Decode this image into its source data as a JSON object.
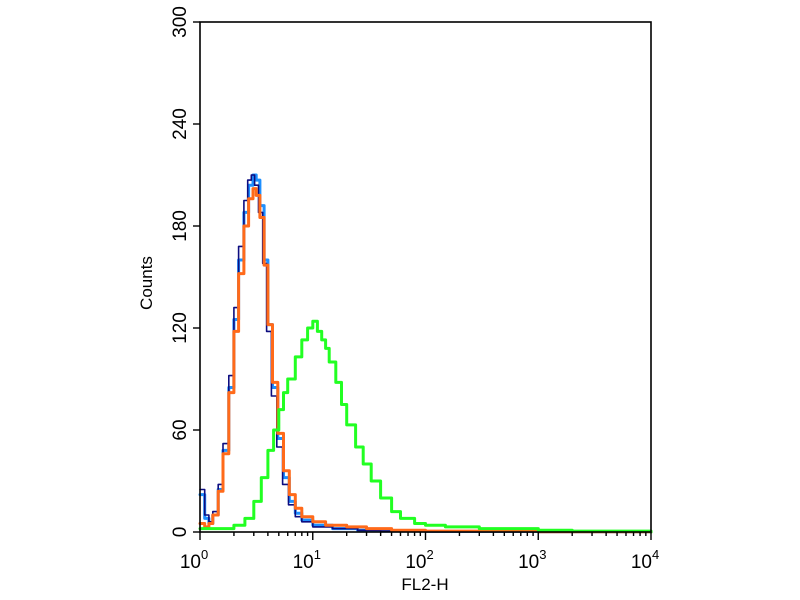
{
  "chart_data": {
    "type": "line",
    "xlabel": "FL2-H",
    "ylabel": "Counts",
    "x_scale": "log",
    "xlim": [
      1,
      10000
    ],
    "ylim": [
      0,
      300
    ],
    "x_ticks": [
      {
        "base": "10",
        "exp": "0",
        "value": 1
      },
      {
        "base": "10",
        "exp": "1",
        "value": 10
      },
      {
        "base": "10",
        "exp": "2",
        "value": 100
      },
      {
        "base": "10",
        "exp": "3",
        "value": 1000
      },
      {
        "base": "10",
        "exp": "4",
        "value": 10000
      }
    ],
    "y_ticks": [
      {
        "label": "0",
        "value": 0
      },
      {
        "label": "60",
        "value": 60
      },
      {
        "label": "120",
        "value": 120
      },
      {
        "label": "180",
        "value": 180
      },
      {
        "label": "240",
        "value": 240
      },
      {
        "label": "300",
        "value": 300
      }
    ],
    "grid": false,
    "legend": "none",
    "series": [
      {
        "color": "#1e90ff",
        "points": [
          [
            1.0,
            22
          ],
          [
            1.1,
            8
          ],
          [
            1.2,
            5
          ],
          [
            1.3,
            10
          ],
          [
            1.45,
            25
          ],
          [
            1.6,
            48
          ],
          [
            1.8,
            85
          ],
          [
            2.0,
            125
          ],
          [
            2.2,
            160
          ],
          [
            2.45,
            188
          ],
          [
            2.7,
            204
          ],
          [
            2.95,
            210
          ],
          [
            3.15,
            207
          ],
          [
            3.4,
            192
          ],
          [
            3.7,
            160
          ],
          [
            4.0,
            122
          ],
          [
            4.4,
            85
          ],
          [
            4.9,
            55
          ],
          [
            5.5,
            32
          ],
          [
            6.2,
            18
          ],
          [
            7.0,
            11
          ],
          [
            8.0,
            7
          ],
          [
            10,
            4
          ],
          [
            15,
            2
          ],
          [
            25,
            1
          ],
          [
            40,
            0.5
          ],
          [
            100,
            0.3
          ],
          [
            1000,
            0.2
          ],
          [
            10000,
            0
          ]
        ]
      },
      {
        "color": "#0d0d80",
        "points": [
          [
            1.0,
            25
          ],
          [
            1.1,
            10
          ],
          [
            1.2,
            6
          ],
          [
            1.3,
            12
          ],
          [
            1.45,
            28
          ],
          [
            1.6,
            52
          ],
          [
            1.8,
            92
          ],
          [
            2.0,
            132
          ],
          [
            2.2,
            168
          ],
          [
            2.45,
            195
          ],
          [
            2.65,
            207
          ],
          [
            2.85,
            210
          ],
          [
            3.05,
            204
          ],
          [
            3.3,
            188
          ],
          [
            3.6,
            158
          ],
          [
            3.9,
            118
          ],
          [
            4.3,
            80
          ],
          [
            4.8,
            50
          ],
          [
            5.4,
            28
          ],
          [
            6.1,
            16
          ],
          [
            7.0,
            9
          ],
          [
            8.0,
            6
          ],
          [
            10,
            3
          ],
          [
            15,
            2
          ],
          [
            25,
            1
          ],
          [
            40,
            0.5
          ],
          [
            100,
            0.3
          ],
          [
            1000,
            0.2
          ],
          [
            10000,
            0
          ]
        ]
      },
      {
        "color": "#ff6a1a",
        "points": [
          [
            1.0,
            5
          ],
          [
            1.1,
            3
          ],
          [
            1.2,
            5
          ],
          [
            1.3,
            10
          ],
          [
            1.45,
            24
          ],
          [
            1.6,
            46
          ],
          [
            1.8,
            82
          ],
          [
            2.0,
            118
          ],
          [
            2.2,
            152
          ],
          [
            2.45,
            180
          ],
          [
            2.7,
            196
          ],
          [
            2.95,
            202
          ],
          [
            3.15,
            198
          ],
          [
            3.4,
            185
          ],
          [
            3.7,
            157
          ],
          [
            4.0,
            122
          ],
          [
            4.4,
            88
          ],
          [
            4.9,
            58
          ],
          [
            5.5,
            36
          ],
          [
            6.2,
            22
          ],
          [
            7.0,
            14
          ],
          [
            8.0,
            9
          ],
          [
            10,
            6
          ],
          [
            13,
            4
          ],
          [
            20,
            3
          ],
          [
            30,
            2
          ],
          [
            50,
            1
          ],
          [
            100,
            0.5
          ],
          [
            1000,
            0.2
          ],
          [
            10000,
            0
          ]
        ]
      },
      {
        "color": "#22ff22",
        "points": [
          [
            1.0,
            2
          ],
          [
            1.5,
            2
          ],
          [
            2.0,
            4
          ],
          [
            2.5,
            8
          ],
          [
            3.0,
            18
          ],
          [
            3.5,
            32
          ],
          [
            4.0,
            48
          ],
          [
            4.5,
            60
          ],
          [
            5.0,
            72
          ],
          [
            5.5,
            82
          ],
          [
            6.0,
            90
          ],
          [
            7.0,
            103
          ],
          [
            8.0,
            113
          ],
          [
            9.0,
            120
          ],
          [
            10,
            124
          ],
          [
            11,
            118
          ],
          [
            12,
            113
          ],
          [
            13,
            108
          ],
          [
            14,
            100
          ],
          [
            16,
            88
          ],
          [
            18,
            75
          ],
          [
            20,
            63
          ],
          [
            24,
            50
          ],
          [
            28,
            40
          ],
          [
            33,
            30
          ],
          [
            40,
            20
          ],
          [
            50,
            12
          ],
          [
            60,
            8
          ],
          [
            80,
            5
          ],
          [
            100,
            4
          ],
          [
            150,
            3
          ],
          [
            300,
            2
          ],
          [
            1000,
            1
          ],
          [
            2000,
            0.5
          ],
          [
            10000,
            0
          ]
        ]
      }
    ]
  }
}
